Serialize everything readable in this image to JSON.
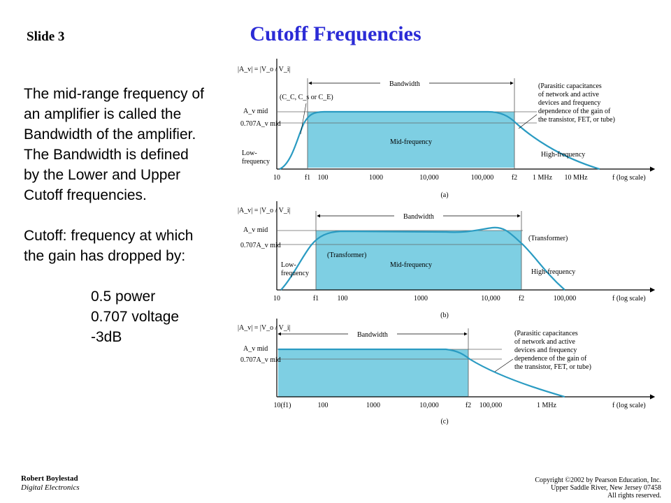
{
  "slide": {
    "number_label": "Slide 3",
    "title": "Cutoff Frequencies",
    "paragraph1": [
      "The mid-range frequency of",
      "an amplifier is called the",
      "Bandwidth of the amplifier.",
      "The Bandwidth is defined",
      "by the Lower and Upper",
      "Cutoff frequencies."
    ],
    "paragraph2": [
      "Cutoff: frequency at which",
      "the gain has dropped by:"
    ],
    "list": [
      "0.5 power",
      "0.707 voltage",
      "-3dB"
    ]
  },
  "footer": {
    "author": "Robert Boylestad",
    "course": "Digital Electronics",
    "copyright": [
      "Copyright ©2002 by Pearson Education, Inc.",
      "Upper Saddle River, New Jersey 07458",
      "All rights reserved."
    ]
  },
  "colors": {
    "title": "#2b2bd6",
    "fill": "#7ecfe3",
    "curve": "#2a9bc2"
  },
  "diagrams": {
    "a": {
      "caption": "(a)",
      "ylabel": "|A_v| = |V_o / V_i|",
      "ymid": "A_v mid",
      "y707": "0.707A_v mid",
      "bandwidth": "Bandwidth",
      "coupling": "(C_C, C_s or C_E)",
      "mid_label": "Mid-frequency",
      "low_label": [
        "Low-",
        "frequency"
      ],
      "high_label": "High-frequency",
      "note": [
        "(Parasitic capacitances",
        "of network and active",
        "devices and frequency",
        "dependence of the gain of",
        "the transistor, FET, or tube)"
      ],
      "ticks": [
        "10",
        "f1",
        "100",
        "1000",
        "10,000",
        "100,000",
        "f2",
        "1 MHz",
        "10 MHz",
        "f (log scale)"
      ]
    },
    "b": {
      "caption": "(b)",
      "ylabel": "|A_v| = |V_o / V_i|",
      "ymid": "A_v mid",
      "y707": "0.707A_v mid",
      "bandwidth": "Bandwidth",
      "mid_label": "Mid-frequency",
      "low_label": [
        "Low-",
        "frequency"
      ],
      "high_label": "High-frequency",
      "transformer_left": "(Transformer)",
      "transformer_right": "(Transformer)",
      "ticks": [
        "10",
        "f1",
        "100",
        "1000",
        "10,000",
        "f2",
        "100,000",
        "f (log scale)"
      ]
    },
    "c": {
      "caption": "(c)",
      "ylabel": "|A_v| = |V_o / V_i|",
      "ymid": "A_v mid",
      "y707": "0.707A_v mid",
      "bandwidth": "Bandwidth",
      "note": [
        "(Parasitic capacitances",
        "of network and active",
        "devices and frequency",
        "dependence of the gain of",
        "the transistor, FET, or tube)"
      ],
      "ticks": [
        "10(f1)",
        "100",
        "1000",
        "10,000",
        "f2",
        "100,000",
        "1 MHz",
        "f (log scale)"
      ]
    }
  }
}
